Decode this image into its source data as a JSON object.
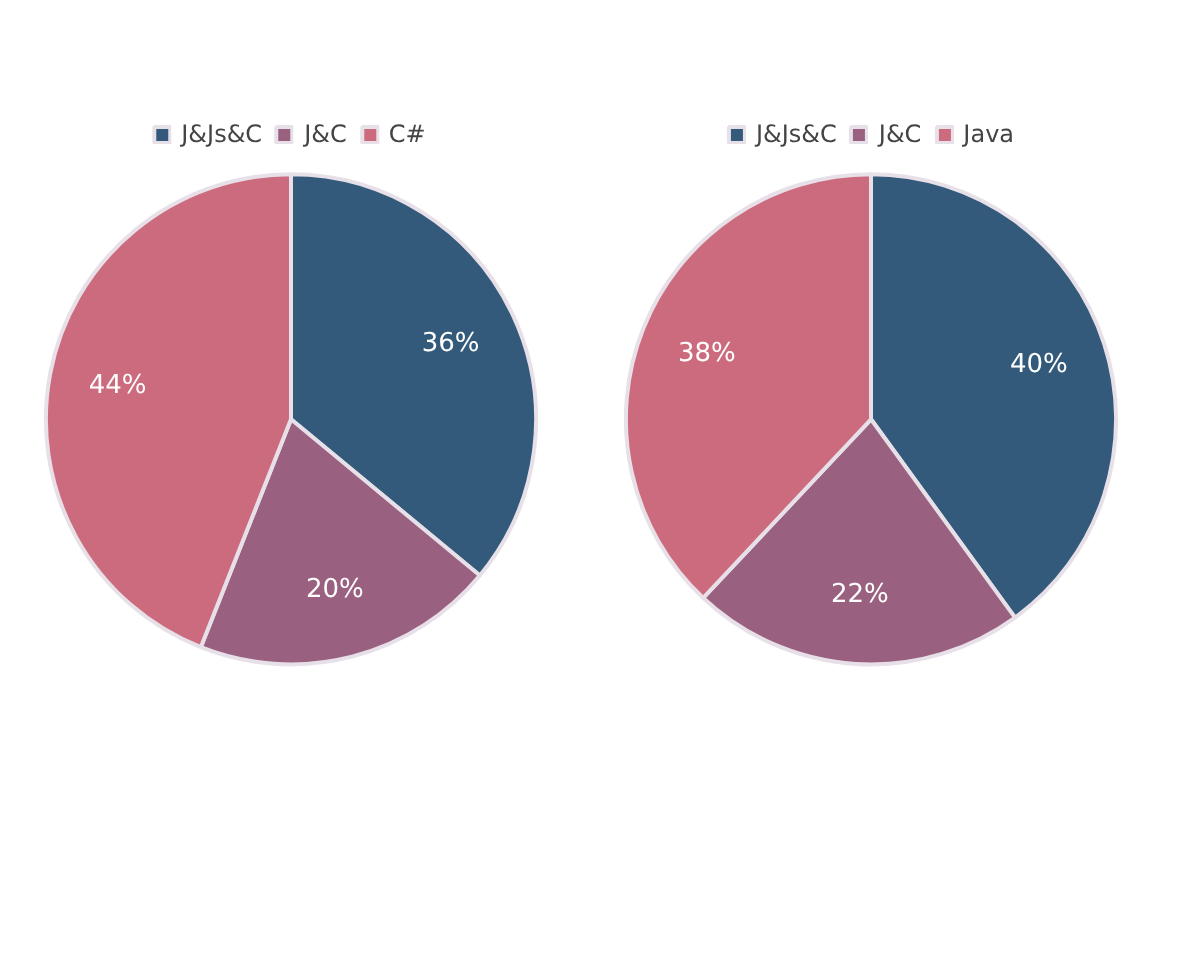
{
  "chart_data": [
    {
      "type": "pie",
      "categories": [
        "J&Js&C",
        "J&C",
        "C#"
      ],
      "values": [
        36,
        20,
        44
      ],
      "value_labels": [
        "36%",
        "20%",
        "44%"
      ],
      "colors": [
        "#335a7a",
        "#9a6080",
        "#cc6b7d"
      ],
      "legend": "top"
    },
    {
      "type": "pie",
      "categories": [
        "J&Js&C",
        "J&C",
        "Java"
      ],
      "values": [
        40,
        22,
        38
      ],
      "value_labels": [
        "40%",
        "22%",
        "38%"
      ],
      "colors": [
        "#335a7a",
        "#9a6080",
        "#cc6b7d"
      ],
      "legend": "top"
    }
  ]
}
